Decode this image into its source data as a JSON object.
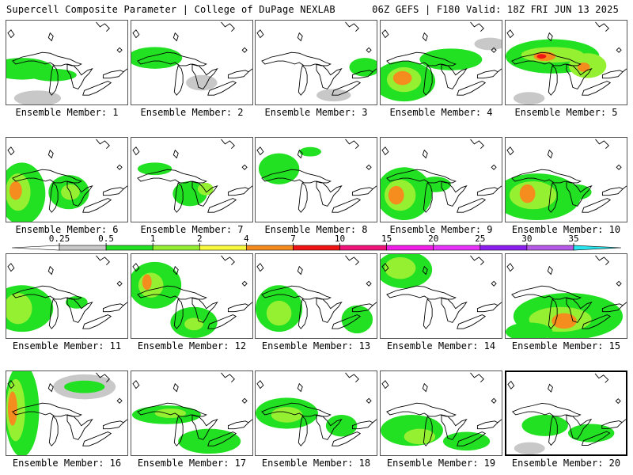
{
  "header": {
    "title_left": "Supercell Composite Parameter | College of DuPage NEXLAB",
    "title_right": "06Z GEFS | F180 Valid: 18Z FRI JUN 13 2025"
  },
  "legend": {
    "ticks": [
      "0.25",
      "0.5",
      "1",
      "2",
      "4",
      "7",
      "10",
      "15",
      "20",
      "25",
      "30",
      "35"
    ],
    "colors": [
      "#c8c8c8",
      "#22e022",
      "#96f032",
      "#fafa3c",
      "#f58c1e",
      "#f01414",
      "#f01478",
      "#f01ee6",
      "#e632fa",
      "#8c1ef0",
      "#b45ae6",
      "#28e6f0"
    ]
  },
  "colors": {
    "panel_border": "#555555",
    "selected_border": "#000000",
    "coastline": "#000000"
  },
  "members": [
    {
      "label": "Ensemble Member: 1",
      "selected": false
    },
    {
      "label": "Ensemble Member: 2",
      "selected": false
    },
    {
      "label": "Ensemble Member: 3",
      "selected": false
    },
    {
      "label": "Ensemble Member: 4",
      "selected": false
    },
    {
      "label": "Ensemble Member: 5",
      "selected": false
    },
    {
      "label": "Ensemble Member: 6",
      "selected": false
    },
    {
      "label": "Ensemble Member: 7",
      "selected": false
    },
    {
      "label": "Ensemble Member: 8",
      "selected": false
    },
    {
      "label": "Ensemble Member: 9",
      "selected": false
    },
    {
      "label": "Ensemble Member: 10",
      "selected": false
    },
    {
      "label": "Ensemble Member: 11",
      "selected": false
    },
    {
      "label": "Ensemble Member: 12",
      "selected": false
    },
    {
      "label": "Ensemble Member: 13",
      "selected": false
    },
    {
      "label": "Ensemble Member: 14",
      "selected": false
    },
    {
      "label": "Ensemble Member: 15",
      "selected": false
    },
    {
      "label": "Ensemble Member: 16",
      "selected": false
    },
    {
      "label": "Ensemble Member: 17",
      "selected": false
    },
    {
      "label": "Ensemble Member: 18",
      "selected": false
    },
    {
      "label": "Ensemble Member: 19",
      "selected": false
    },
    {
      "label": "Ensemble Member: 20",
      "selected": true
    }
  ]
}
